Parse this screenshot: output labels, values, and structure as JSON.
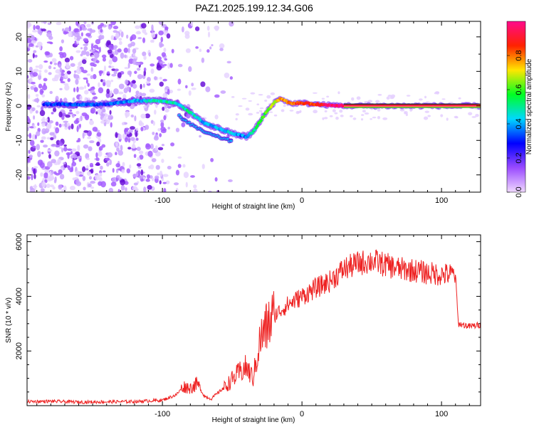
{
  "figure": {
    "title": "PAZ1.2025.199.12.34.G06"
  },
  "chart_data": [
    {
      "type": "heatmap",
      "xlabel": "Height of straight line (km)",
      "ylabel": "Frequency (Hz)",
      "xlim": [
        -197,
        128
      ],
      "ylim": [
        -25,
        24.5
      ],
      "xticks": [
        -100,
        0,
        100
      ],
      "yticks": [
        -20,
        -10,
        0,
        10,
        20
      ],
      "colorbar": {
        "label": "Normalized spectral amplitude",
        "range": [
          0,
          1
        ],
        "ticks": [
          0.0,
          0.2,
          0.4,
          0.6,
          0.8
        ],
        "colormap": [
          "#f0d8ff",
          "#9a4bff",
          "#0000ff",
          "#00d8ff",
          "#00ff22",
          "#ffe600",
          "#ff2200",
          "#ff0a8c"
        ]
      },
      "ridge": {
        "x": [
          -185,
          -160,
          -140,
          -120,
          -105,
          -95,
          -88,
          -80,
          -70,
          -60,
          -50,
          -44,
          -40,
          -35,
          -30,
          -25,
          -20,
          -15,
          -12,
          -8,
          -4,
          0,
          10,
          20,
          40,
          60,
          80,
          100,
          128
        ],
        "y": [
          0.5,
          0.4,
          0.5,
          1.5,
          1.5,
          1.2,
          0.3,
          -2.0,
          -5.0,
          -6.5,
          -8.0,
          -8.5,
          -9.0,
          -7.5,
          -4.5,
          -1.5,
          1.0,
          2.2,
          1.5,
          0.6,
          0.8,
          0.8,
          0.5,
          0.2,
          0.0,
          0.0,
          0.0,
          0.0,
          0.0
        ],
        "amp": [
          0.3,
          0.35,
          0.3,
          0.4,
          0.45,
          0.5,
          0.45,
          0.5,
          0.4,
          0.4,
          0.45,
          0.35,
          0.4,
          0.5,
          0.6,
          0.62,
          0.7,
          0.75,
          0.8,
          0.8,
          0.85,
          0.85,
          0.85,
          0.95,
          1.0,
          1.0,
          1.0,
          1.0,
          1.0
        ]
      },
      "secondary_ridge": {
        "x": [
          -88,
          -80,
          -72,
          -64,
          -56,
          -50
        ],
        "y": [
          -3.0,
          -5.2,
          -7.2,
          -8.5,
          -9.5,
          -10.3
        ]
      }
    },
    {
      "type": "line",
      "xlabel": "Height of straight line (km)",
      "ylabel": "SNR (10 * v/v)",
      "xlim": [
        -197,
        128
      ],
      "ylim": [
        0,
        6250
      ],
      "xticks": [
        -100,
        0,
        100
      ],
      "yticks": [
        2000,
        4000,
        6000
      ],
      "color": "#ee2222",
      "series": [
        {
          "x": [
            -197,
            -180,
            -160,
            -140,
            -120,
            -100,
            -90,
            -85,
            -80,
            -75,
            -70,
            -65,
            -55,
            -45,
            -40,
            -35,
            -30,
            -25,
            -20,
            -10,
            0,
            10,
            20,
            30,
            40,
            50,
            60,
            70,
            80,
            90,
            100,
            110,
            112,
            120,
            128
          ],
          "values": [
            150,
            160,
            130,
            140,
            150,
            200,
            400,
            700,
            650,
            800,
            350,
            250,
            700,
            1200,
            1400,
            1000,
            2400,
            2900,
            3300,
            3700,
            4000,
            4300,
            4550,
            5000,
            5200,
            5300,
            5150,
            5000,
            4950,
            4850,
            4800,
            4800,
            3000,
            2900,
            2950
          ]
        }
      ]
    }
  ]
}
